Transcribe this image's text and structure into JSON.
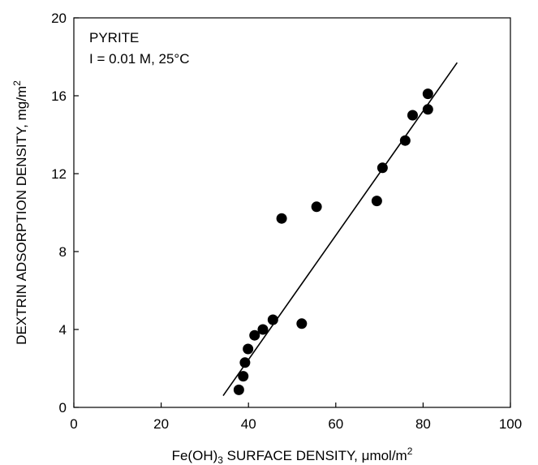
{
  "chart_data": {
    "type": "scatter",
    "xlabel": {
      "main": "Fe(OH)",
      "sub": "3",
      "mid": " SURFACE DENSITY, ",
      "mu": "μ",
      "unit": "mol/m",
      "sup": "2"
    },
    "ylabel": {
      "main": "DEXTRIN ADSORPTION DENSITY, mg/m",
      "sup": "2"
    },
    "annotations": [
      "PYRITE",
      "I = 0.01 M, 25°C"
    ],
    "xlim": [
      0,
      100
    ],
    "ylim": [
      0,
      20
    ],
    "xticks": [
      0,
      20,
      40,
      60,
      80,
      100
    ],
    "yticks": [
      0,
      4,
      8,
      12,
      16,
      20
    ],
    "grid": false,
    "marker_color": "#000000",
    "points": [
      {
        "x": 37.8,
        "y": 0.9
      },
      {
        "x": 38.8,
        "y": 1.6
      },
      {
        "x": 39.2,
        "y": 2.3
      },
      {
        "x": 39.9,
        "y": 3.0
      },
      {
        "x": 41.4,
        "y": 3.7
      },
      {
        "x": 43.3,
        "y": 4.0
      },
      {
        "x": 45.6,
        "y": 4.5
      },
      {
        "x": 47.6,
        "y": 9.7
      },
      {
        "x": 52.2,
        "y": 4.3
      },
      {
        "x": 55.6,
        "y": 10.3
      },
      {
        "x": 69.4,
        "y": 10.6
      },
      {
        "x": 70.7,
        "y": 12.3
      },
      {
        "x": 75.9,
        "y": 13.7
      },
      {
        "x": 77.6,
        "y": 15.0
      },
      {
        "x": 81.1,
        "y": 15.3
      },
      {
        "x": 81.1,
        "y": 16.1
      }
    ],
    "fit_line": {
      "x": [
        34.2,
        87.8
      ],
      "y": [
        0.6,
        17.7
      ]
    }
  }
}
